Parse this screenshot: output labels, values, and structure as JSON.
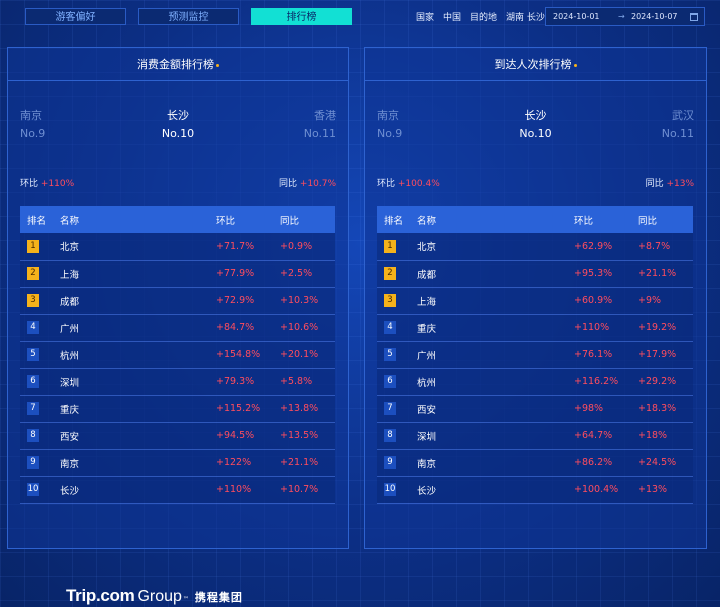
{
  "tabs": [
    {
      "label": "游客偏好",
      "active": false
    },
    {
      "label": "预测监控",
      "active": false
    },
    {
      "label": "排行榜",
      "active": true
    }
  ],
  "filters": {
    "scope": "国家",
    "country": "中国",
    "dest_label": "目的地",
    "dest_value": "湖南 长沙",
    "date_start": "2024-10-01",
    "date_arrow": "→",
    "date_end": "2024-10-07"
  },
  "colors": {
    "accent": "#12e0d4",
    "up": "#ff4d5e",
    "top_badge": "#f5b21b"
  },
  "panels": [
    {
      "title": "消费金额排行榜",
      "prev": {
        "city": "南京",
        "no": "No.9"
      },
      "current": {
        "city": "长沙",
        "no": "No.10"
      },
      "next": {
        "city": "香港",
        "no": "No.11"
      },
      "hb_label": "环比",
      "hb_value": "+110%",
      "tb_label": "同比",
      "tb_value": "+10.7%",
      "headers": {
        "rank": "排名",
        "name": "名称",
        "hb": "环比",
        "tb": "同比"
      },
      "rows": [
        {
          "rank": "1",
          "name": "北京",
          "hb": "+71.7%",
          "tb": "+0.9%"
        },
        {
          "rank": "2",
          "name": "上海",
          "hb": "+77.9%",
          "tb": "+2.5%"
        },
        {
          "rank": "3",
          "name": "成都",
          "hb": "+72.9%",
          "tb": "+10.3%"
        },
        {
          "rank": "4",
          "name": "广州",
          "hb": "+84.7%",
          "tb": "+10.6%"
        },
        {
          "rank": "5",
          "name": "杭州",
          "hb": "+154.8%",
          "tb": "+20.1%"
        },
        {
          "rank": "6",
          "name": "深圳",
          "hb": "+79.3%",
          "tb": "+5.8%"
        },
        {
          "rank": "7",
          "name": "重庆",
          "hb": "+115.2%",
          "tb": "+13.8%"
        },
        {
          "rank": "8",
          "name": "西安",
          "hb": "+94.5%",
          "tb": "+13.5%"
        },
        {
          "rank": "9",
          "name": "南京",
          "hb": "+122%",
          "tb": "+21.1%"
        },
        {
          "rank": "10",
          "name": "长沙",
          "hb": "+110%",
          "tb": "+10.7%"
        }
      ]
    },
    {
      "title": "到达人次排行榜",
      "prev": {
        "city": "南京",
        "no": "No.9"
      },
      "current": {
        "city": "长沙",
        "no": "No.10"
      },
      "next": {
        "city": "武汉",
        "no": "No.11"
      },
      "hb_label": "环比",
      "hb_value": "+100.4%",
      "tb_label": "同比",
      "tb_value": "+13%",
      "headers": {
        "rank": "排名",
        "name": "名称",
        "hb": "环比",
        "tb": "同比"
      },
      "rows": [
        {
          "rank": "1",
          "name": "北京",
          "hb": "+62.9%",
          "tb": "+8.7%"
        },
        {
          "rank": "2",
          "name": "成都",
          "hb": "+95.3%",
          "tb": "+21.1%"
        },
        {
          "rank": "3",
          "name": "上海",
          "hb": "+60.9%",
          "tb": "+9%"
        },
        {
          "rank": "4",
          "name": "重庆",
          "hb": "+110%",
          "tb": "+19.2%"
        },
        {
          "rank": "5",
          "name": "广州",
          "hb": "+76.1%",
          "tb": "+17.9%"
        },
        {
          "rank": "6",
          "name": "杭州",
          "hb": "+116.2%",
          "tb": "+29.2%"
        },
        {
          "rank": "7",
          "name": "西安",
          "hb": "+98%",
          "tb": "+18.3%"
        },
        {
          "rank": "8",
          "name": "深圳",
          "hb": "+64.7%",
          "tb": "+18%"
        },
        {
          "rank": "9",
          "name": "南京",
          "hb": "+86.2%",
          "tb": "+24.5%"
        },
        {
          "rank": "10",
          "name": "长沙",
          "hb": "+100.4%",
          "tb": "+13%"
        }
      ]
    }
  ],
  "footer": {
    "logo_trip": "Trip.com",
    "logo_group": "Group",
    "logo_tm": "™",
    "logo_cn": "携程集团"
  }
}
